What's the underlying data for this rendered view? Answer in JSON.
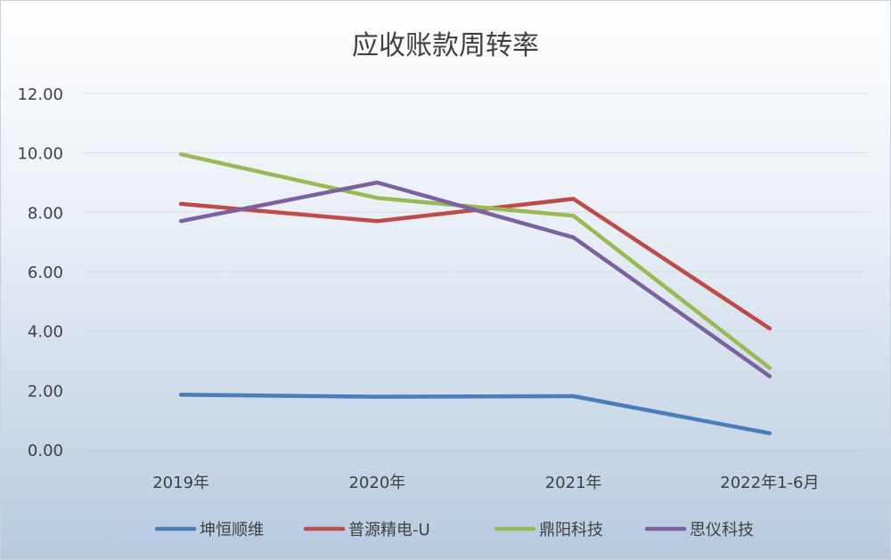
{
  "chart_data": {
    "type": "line",
    "title": "应收账款周转率",
    "categories": [
      "2019年",
      "2020年",
      "2021年",
      "2022年1-6月"
    ],
    "ylim": [
      0,
      12
    ],
    "yticks": [
      "0.00",
      "2.00",
      "4.00",
      "6.00",
      "8.00",
      "10.00",
      "12.00"
    ],
    "grid": true,
    "legend": "bottom",
    "series": [
      {
        "name": "坤恒顺维",
        "color": "#4a7ebb",
        "values": [
          1.85,
          1.78,
          1.8,
          0.55
        ]
      },
      {
        "name": "普源精电-U",
        "color": "#be4b48",
        "values": [
          8.28,
          7.7,
          8.45,
          4.08
        ]
      },
      {
        "name": "鼎阳科技",
        "color": "#98b954",
        "values": [
          9.95,
          8.48,
          7.88,
          2.75
        ]
      },
      {
        "name": "思仪科技",
        "color": "#7d60a0",
        "values": [
          7.7,
          9.0,
          7.15,
          2.47
        ]
      }
    ]
  }
}
